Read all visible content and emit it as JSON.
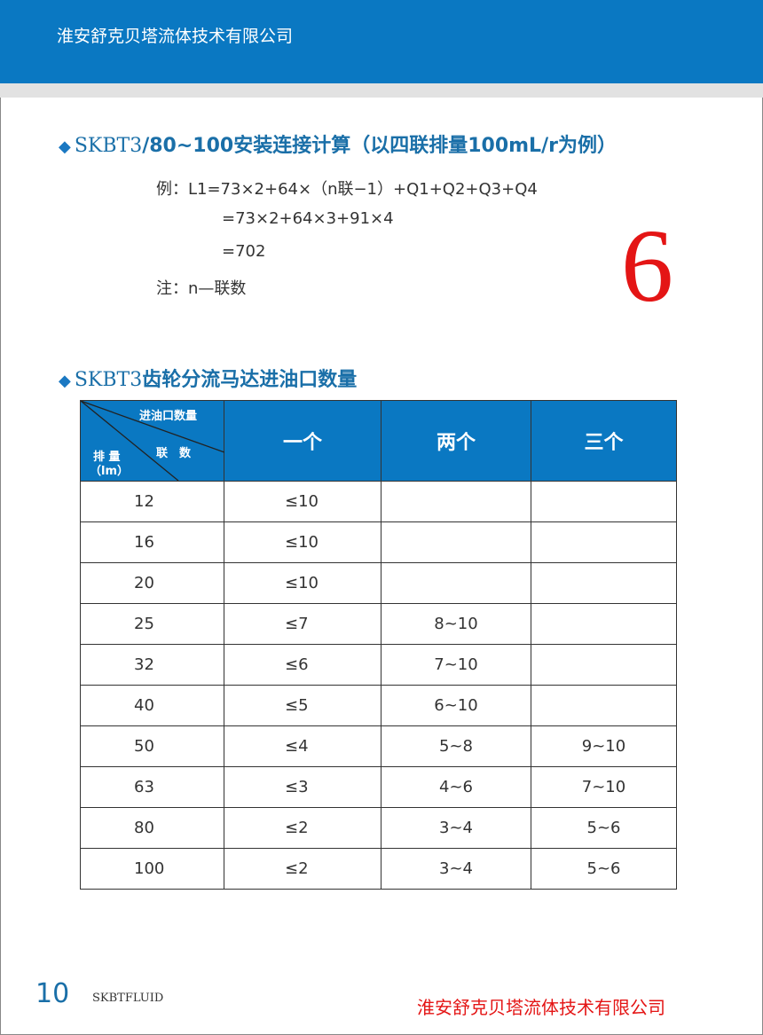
{
  "header": {
    "company": "淮安舒克贝塔流体技术有限公司"
  },
  "section1": {
    "prefix": "SKBT3",
    "title": "/80~100安装连接计算（以四联排量100mL/r为例）",
    "lines": [
      "例：L1=73×2+64×（n联−1）+Q1+Q2+Q3+Q4",
      "=73×2+64×3+91×4",
      "=702",
      "注：n—联数"
    ],
    "big_number": "6"
  },
  "section2": {
    "prefix": "SKBT3",
    "title": "齿轮分流马达进油口数量"
  },
  "table": {
    "corner": {
      "top": "进油口数量",
      "middle": "联　数",
      "left": "排 量",
      "unit": "（lm）"
    },
    "headers": [
      "一个",
      "两个",
      "三个"
    ],
    "rows": [
      [
        "12",
        "≤10",
        "",
        ""
      ],
      [
        "16",
        "≤10",
        "",
        ""
      ],
      [
        "20",
        "≤10",
        "",
        ""
      ],
      [
        "25",
        "≤7",
        "8~10",
        ""
      ],
      [
        "32",
        "≤6",
        "7~10",
        ""
      ],
      [
        "40",
        "≤5",
        "6~10",
        ""
      ],
      [
        "50",
        "≤4",
        "5~8",
        "9~10"
      ],
      [
        "63",
        "≤3",
        "4~6",
        "7~10"
      ],
      [
        "80",
        "≤2",
        "3~4",
        "5~6"
      ],
      [
        "100",
        "≤2",
        "3~4",
        "5~6"
      ]
    ]
  },
  "footer": {
    "page": "10",
    "brand": "SKBTFLUID",
    "company": "淮安舒克贝塔流体技术有限公司"
  },
  "colors": {
    "blue": "#0a78c2",
    "red": "#e41515"
  }
}
